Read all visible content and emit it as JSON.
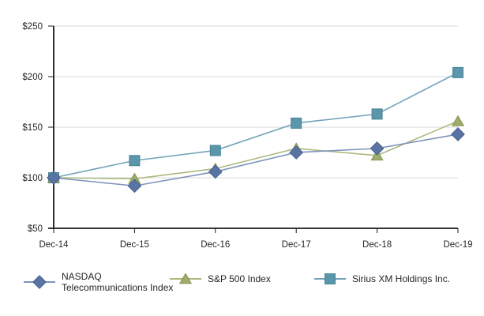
{
  "chart_data": {
    "type": "line",
    "title": "",
    "xlabel": "",
    "ylabel": "",
    "categories": [
      "Dec-14",
      "Dec-15",
      "Dec-16",
      "Dec-17",
      "Dec-18",
      "Dec-19"
    ],
    "series": [
      {
        "name": "NASDAQ Telecommunications Index",
        "legend_lines": [
          "NASDAQ",
          "Telecommunications Index"
        ],
        "marker": "diamond",
        "values": [
          100,
          92,
          106,
          125,
          129,
          143
        ],
        "line_color": "#7E94BB",
        "marker_color": "#5873A4",
        "marker_edge": "#47618F"
      },
      {
        "name": "S&P 500 Index",
        "legend_lines": [
          "S&P 500 Index"
        ],
        "marker": "triangle",
        "values": [
          100,
          99,
          109,
          129,
          122,
          156
        ],
        "line_color": "#ACB97E",
        "marker_color": "#9EAD6B",
        "marker_edge": "#82914F"
      },
      {
        "name": "Sirius XM Holdings Inc.",
        "legend_lines": [
          "Sirius XM Holdings Inc."
        ],
        "marker": "square",
        "values": [
          100,
          117,
          127,
          154,
          163,
          204
        ],
        "line_color": "#74A4B8",
        "marker_color": "#5C96AA",
        "marker_edge": "#4A8195"
      }
    ],
    "draw_order": [
      2,
      1,
      0
    ],
    "ylim": [
      50,
      250
    ],
    "yticks": [
      50,
      100,
      150,
      200,
      250
    ],
    "ytick_labels": [
      "$50",
      "$100",
      "$150",
      "$200",
      "$250"
    ],
    "grid": true,
    "legend_position": "bottom",
    "axis_color": "#1A1A1A",
    "grid_color": "#DADADA",
    "text_color": "#262626",
    "background": "#FFFFFF"
  }
}
